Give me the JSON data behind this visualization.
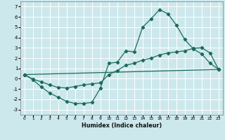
{
  "xlabel": "Humidex (Indice chaleur)",
  "xlim": [
    -0.5,
    23.5
  ],
  "ylim": [
    -3.5,
    7.5
  ],
  "yticks": [
    -3,
    -2,
    -1,
    0,
    1,
    2,
    3,
    4,
    5,
    6,
    7
  ],
  "xticks": [
    0,
    1,
    2,
    3,
    4,
    5,
    6,
    7,
    8,
    9,
    10,
    11,
    12,
    13,
    14,
    15,
    16,
    17,
    18,
    19,
    20,
    21,
    22,
    23
  ],
  "bg_color": "#cce8ec",
  "grid_color": "#ffffff",
  "line_color": "#1a6b5a",
  "curve1_x": [
    0,
    1,
    2,
    3,
    4,
    5,
    6,
    7,
    8,
    9,
    10,
    11,
    12,
    13,
    14,
    15,
    16,
    17,
    18,
    19,
    20,
    21,
    22,
    23
  ],
  "curve1_y": [
    0.4,
    -0.1,
    -0.8,
    -1.4,
    -1.8,
    -2.2,
    -2.4,
    -2.4,
    -2.3,
    -0.9,
    1.5,
    1.6,
    2.7,
    2.6,
    5.0,
    5.8,
    6.7,
    6.3,
    5.2,
    3.8,
    2.9,
    2.4,
    1.5,
    0.9
  ],
  "curve2_x": [
    0,
    23
  ],
  "curve2_y": [
    0.4,
    0.9
  ],
  "curve3_x": [
    0,
    1,
    2,
    3,
    4,
    5,
    6,
    7,
    8,
    9,
    10,
    11,
    12,
    13,
    14,
    15,
    16,
    17,
    18,
    19,
    20,
    21,
    22,
    23
  ],
  "curve3_y": [
    0.4,
    -0.05,
    -0.3,
    -0.6,
    -0.85,
    -0.9,
    -0.75,
    -0.6,
    -0.5,
    -0.4,
    0.4,
    0.8,
    1.3,
    1.5,
    1.8,
    2.0,
    2.3,
    2.5,
    2.6,
    2.7,
    2.95,
    3.0,
    2.5,
    0.9
  ]
}
